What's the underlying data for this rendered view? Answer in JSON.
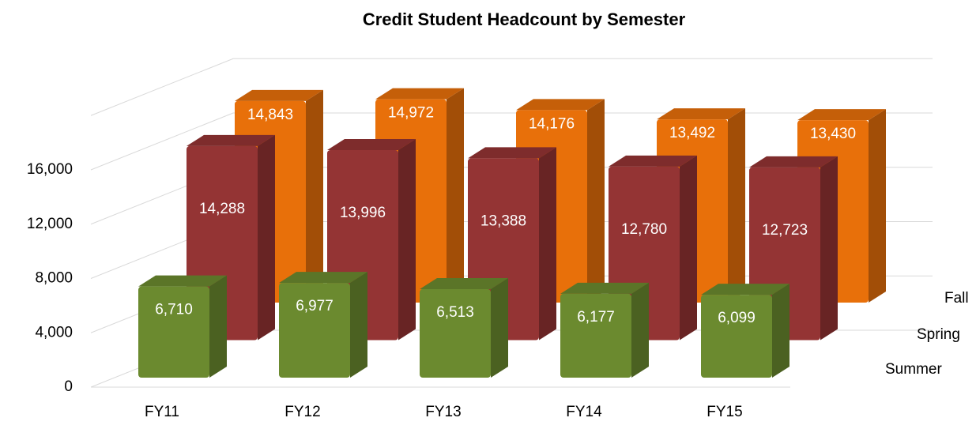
{
  "chart_data": {
    "type": "bar3d",
    "title": "Credit Student Headcount by Semester",
    "categories": [
      "FY11",
      "FY12",
      "FY13",
      "FY14",
      "FY15"
    ],
    "series": [
      {
        "name": "Summer",
        "color": "#6b8a2f",
        "values": [
          6710,
          6977,
          6513,
          6177,
          6099
        ],
        "value_labels": [
          "6,710",
          "6,977",
          "6,513",
          "6,177",
          "6,099"
        ]
      },
      {
        "name": "Spring",
        "color": "#943434",
        "values": [
          14288,
          13996,
          13388,
          12780,
          12723
        ],
        "value_labels": [
          "14,288",
          "13,996",
          "13,388",
          "12,780",
          "12,723"
        ]
      },
      {
        "name": "Fall",
        "color": "#e8700a",
        "values": [
          14843,
          14972,
          14176,
          13492,
          13430
        ],
        "value_labels": [
          "14,843",
          "14,972",
          "14,176",
          "13,492",
          "13,430"
        ]
      }
    ],
    "ylim": [
      0,
      20000
    ],
    "yticks": [
      0,
      {
        "value": 4000,
        "label": "4,000"
      },
      {
        "value": 8000,
        "label": "8,000"
      },
      {
        "value": 12000,
        "label": "12,000"
      },
      {
        "value": 16000,
        "label": "16,000"
      }
    ],
    "grid": true
  }
}
